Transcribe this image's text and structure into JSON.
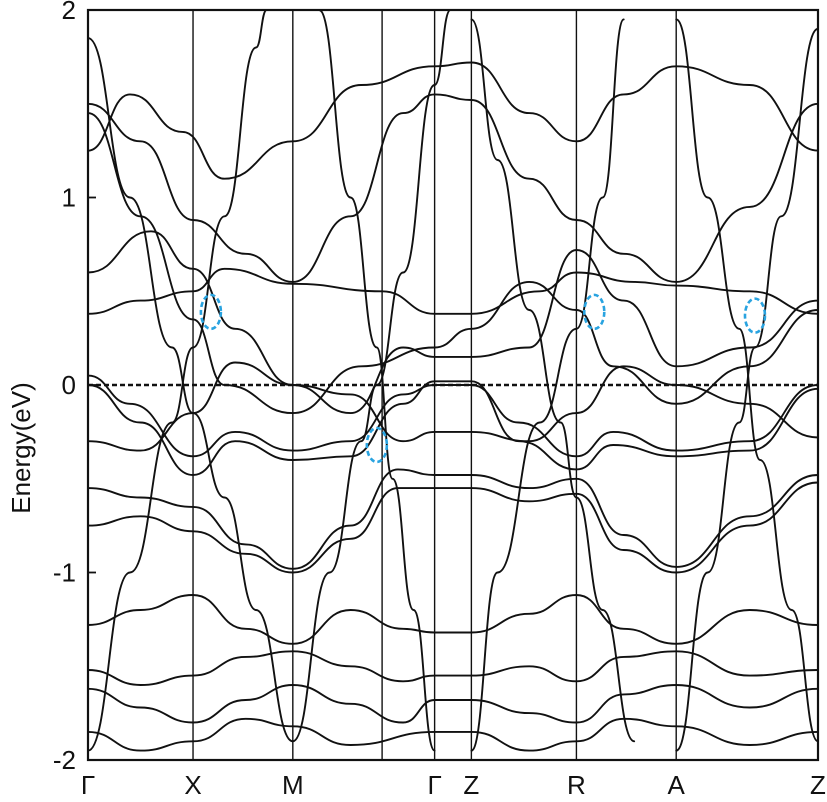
{
  "chart_data": {
    "type": "line",
    "title": "",
    "xlabel": "",
    "ylabel": "Energy(eV)",
    "ylim": [
      -2,
      2
    ],
    "yticks": [
      {
        "value": 2,
        "label": "2"
      },
      {
        "value": 1,
        "label": "1"
      },
      {
        "value": 0,
        "label": "0"
      },
      {
        "value": -1,
        "label": "-1"
      },
      {
        "value": -2,
        "label": "-2"
      }
    ],
    "kpath": [
      {
        "label": "Γ",
        "pos": 0.0
      },
      {
        "label": "X",
        "pos": 1.0
      },
      {
        "label": "M",
        "pos": 1.95
      },
      {
        "label": "",
        "pos": 2.8
      },
      {
        "label": "Γ",
        "pos": 3.3
      },
      {
        "label": "Z",
        "pos": 3.65
      },
      {
        "label": "R",
        "pos": 4.65
      },
      {
        "label": "A",
        "pos": 5.6
      },
      {
        "label": "Z",
        "pos": 6.95
      }
    ],
    "xlim": [
      0,
      6.95
    ],
    "fermi_level": 0,
    "grid": false,
    "line_color": "#111111",
    "highlight_color": "#29a3e0",
    "highlights": [
      {
        "k": 1.17,
        "e": 0.39
      },
      {
        "k": 2.75,
        "e": -0.32
      },
      {
        "k": 4.82,
        "e": 0.39
      },
      {
        "k": 6.35,
        "e": 0.37
      }
    ],
    "series": [
      {
        "points": [
          [
            0,
            0.38
          ],
          [
            0.5,
            0.45
          ],
          [
            1.0,
            0.5
          ],
          [
            1.3,
            0.62
          ],
          [
            1.95,
            0.54
          ],
          [
            2.8,
            0.5
          ],
          [
            3.3,
            0.38
          ],
          [
            3.65,
            0.38
          ],
          [
            4.3,
            0.5
          ],
          [
            4.65,
            0.6
          ],
          [
            5.2,
            0.55
          ],
          [
            5.6,
            0.53
          ],
          [
            6.3,
            0.5
          ],
          [
            6.95,
            0.38
          ]
        ]
      },
      {
        "points": [
          [
            0,
            0.05
          ],
          [
            0.4,
            -0.1
          ],
          [
            1.0,
            -0.38
          ],
          [
            1.4,
            -0.25
          ],
          [
            1.95,
            -0.35
          ],
          [
            2.5,
            -0.3
          ],
          [
            3.0,
            -0.05
          ],
          [
            3.3,
            0.0
          ],
          [
            3.65,
            0.0
          ],
          [
            4.1,
            -0.2
          ],
          [
            4.65,
            -0.38
          ],
          [
            5.0,
            -0.25
          ],
          [
            5.6,
            -0.35
          ],
          [
            6.3,
            -0.3
          ],
          [
            6.95,
            0.0
          ]
        ]
      },
      {
        "points": [
          [
            0,
            0.0
          ],
          [
            0.5,
            -0.2
          ],
          [
            1.0,
            -0.48
          ],
          [
            1.4,
            -0.3
          ],
          [
            1.95,
            -0.4
          ],
          [
            2.5,
            -0.38
          ],
          [
            3.0,
            -0.1
          ],
          [
            3.3,
            0.02
          ],
          [
            3.65,
            0.02
          ],
          [
            4.1,
            -0.3
          ],
          [
            4.65,
            -0.45
          ],
          [
            5.0,
            -0.32
          ],
          [
            5.6,
            -0.38
          ],
          [
            6.3,
            -0.35
          ],
          [
            6.95,
            -0.02
          ]
        ]
      },
      {
        "points": [
          [
            0,
            -0.55
          ],
          [
            0.5,
            -0.6
          ],
          [
            1.0,
            -0.65
          ],
          [
            1.5,
            -0.85
          ],
          [
            1.95,
            -0.98
          ],
          [
            2.5,
            -0.75
          ],
          [
            2.95,
            -0.45
          ],
          [
            3.3,
            -0.48
          ],
          [
            3.65,
            -0.48
          ],
          [
            4.2,
            -0.55
          ],
          [
            4.65,
            -0.5
          ],
          [
            5.1,
            -0.8
          ],
          [
            5.6,
            -0.97
          ],
          [
            6.3,
            -0.7
          ],
          [
            6.95,
            -0.48
          ]
        ]
      },
      {
        "points": [
          [
            0,
            -0.75
          ],
          [
            0.5,
            -0.7
          ],
          [
            1.0,
            -0.78
          ],
          [
            1.5,
            -0.9
          ],
          [
            1.95,
            -1.0
          ],
          [
            2.5,
            -0.82
          ],
          [
            2.95,
            -0.55
          ],
          [
            3.3,
            -0.55
          ],
          [
            3.65,
            -0.55
          ],
          [
            4.2,
            -0.62
          ],
          [
            4.65,
            -0.58
          ],
          [
            5.1,
            -0.88
          ],
          [
            5.6,
            -1.0
          ],
          [
            6.3,
            -0.75
          ],
          [
            6.95,
            -0.52
          ]
        ]
      },
      {
        "points": [
          [
            0,
            -1.52
          ],
          [
            0.5,
            -1.6
          ],
          [
            1.0,
            -1.55
          ],
          [
            1.5,
            -1.45
          ],
          [
            1.95,
            -1.42
          ],
          [
            2.5,
            -1.5
          ],
          [
            3.0,
            -1.58
          ],
          [
            3.3,
            -1.55
          ],
          [
            3.65,
            -1.55
          ],
          [
            4.2,
            -1.5
          ],
          [
            4.65,
            -1.58
          ],
          [
            5.1,
            -1.45
          ],
          [
            5.6,
            -1.42
          ],
          [
            6.3,
            -1.55
          ],
          [
            6.95,
            -1.52
          ]
        ]
      },
      {
        "points": [
          [
            0,
            -1.62
          ],
          [
            0.5,
            -1.72
          ],
          [
            1.0,
            -1.8
          ],
          [
            1.5,
            -1.68
          ],
          [
            1.95,
            -1.6
          ],
          [
            2.5,
            -1.7
          ],
          [
            3.0,
            -1.8
          ],
          [
            3.3,
            -1.68
          ],
          [
            3.65,
            -1.68
          ],
          [
            4.2,
            -1.75
          ],
          [
            4.65,
            -1.8
          ],
          [
            5.1,
            -1.65
          ],
          [
            5.6,
            -1.6
          ],
          [
            6.3,
            -1.72
          ],
          [
            6.95,
            -1.62
          ]
        ]
      },
      {
        "points": [
          [
            0,
            -1.28
          ],
          [
            0.5,
            -1.2
          ],
          [
            1.0,
            -1.12
          ],
          [
            1.5,
            -1.3
          ],
          [
            1.95,
            -1.38
          ],
          [
            2.5,
            -1.2
          ],
          [
            3.0,
            -1.3
          ],
          [
            3.3,
            -1.32
          ],
          [
            3.65,
            -1.32
          ],
          [
            4.2,
            -1.22
          ],
          [
            4.65,
            -1.12
          ],
          [
            5.1,
            -1.3
          ],
          [
            5.6,
            -1.38
          ],
          [
            6.3,
            -1.2
          ],
          [
            6.95,
            -1.28
          ]
        ]
      },
      {
        "points": [
          [
            0,
            1.5
          ],
          [
            0.5,
            1.3
          ],
          [
            1.0,
            0.88
          ],
          [
            1.5,
            0.7
          ],
          [
            1.95,
            0.55
          ],
          [
            2.5,
            0.9
          ],
          [
            3.0,
            1.45
          ],
          [
            3.3,
            1.55
          ],
          [
            3.65,
            1.52
          ],
          [
            4.2,
            1.1
          ],
          [
            4.65,
            0.88
          ],
          [
            5.1,
            0.7
          ],
          [
            5.6,
            0.55
          ],
          [
            6.3,
            0.95
          ],
          [
            6.95,
            1.5
          ]
        ]
      },
      {
        "points": [
          [
            0,
            1.45
          ],
          [
            0.5,
            0.9
          ],
          [
            1.0,
            0.35
          ],
          [
            1.3,
            0.0
          ],
          [
            1.95,
            -0.15
          ],
          [
            2.6,
            0.1
          ],
          [
            3.3,
            0.2
          ],
          [
            3.65,
            0.3
          ],
          [
            4.2,
            0.55
          ],
          [
            4.65,
            0.4
          ],
          [
            5.0,
            0.1
          ],
          [
            5.6,
            -0.1
          ],
          [
            6.3,
            0.1
          ],
          [
            6.95,
            0.4
          ]
        ]
      },
      {
        "points": [
          [
            0,
            0.6
          ],
          [
            0.6,
            0.82
          ],
          [
            1.0,
            0.62
          ],
          [
            1.4,
            0.3
          ],
          [
            1.95,
            0.0
          ],
          [
            2.5,
            -0.15
          ],
          [
            3.0,
            0.2
          ],
          [
            3.3,
            0.15
          ],
          [
            3.65,
            0.15
          ],
          [
            4.2,
            0.2
          ],
          [
            4.65,
            0.72
          ],
          [
            5.1,
            0.45
          ],
          [
            5.6,
            0.1
          ],
          [
            6.3,
            0.2
          ],
          [
            6.95,
            0.45
          ]
        ]
      },
      {
        "points": [
          [
            0,
            -0.3
          ],
          [
            0.5,
            -0.35
          ],
          [
            1.0,
            -0.15
          ],
          [
            1.4,
            0.12
          ],
          [
            1.95,
            0.0
          ],
          [
            2.5,
            -0.05
          ],
          [
            3.0,
            -0.3
          ],
          [
            3.3,
            -0.25
          ],
          [
            3.65,
            -0.25
          ],
          [
            4.2,
            -0.3
          ],
          [
            4.65,
            -0.15
          ],
          [
            5.1,
            0.1
          ],
          [
            5.6,
            0.0
          ],
          [
            6.3,
            -0.1
          ],
          [
            6.95,
            -0.28
          ]
        ]
      },
      {
        "points": [
          [
            0,
            1.85
          ],
          [
            0.4,
            1.0
          ],
          [
            0.8,
            0.2
          ],
          [
            1.0,
            -0.15
          ],
          [
            1.3,
            -0.6
          ],
          [
            1.6,
            -1.2
          ],
          [
            1.95,
            -1.9
          ]
        ]
      },
      {
        "points": [
          [
            1.95,
            -1.9
          ],
          [
            2.3,
            -1.0
          ],
          [
            2.6,
            -0.3
          ],
          [
            2.75,
            0.0
          ],
          [
            3.0,
            0.6
          ],
          [
            3.3,
            1.6
          ],
          [
            3.45,
            2.0
          ]
        ]
      },
      {
        "points": [
          [
            3.65,
            1.95
          ],
          [
            3.9,
            1.2
          ],
          [
            4.2,
            0.4
          ],
          [
            4.5,
            -0.2
          ],
          [
            4.65,
            -0.6
          ],
          [
            4.9,
            -1.2
          ],
          [
            5.2,
            -1.9
          ]
        ]
      },
      {
        "points": [
          [
            5.6,
            -1.95
          ],
          [
            5.9,
            -1.0
          ],
          [
            6.2,
            -0.2
          ],
          [
            6.35,
            0.2
          ],
          [
            6.6,
            0.9
          ],
          [
            6.95,
            1.9
          ]
        ]
      },
      {
        "points": [
          [
            0,
            -1.95
          ],
          [
            0.4,
            -1.0
          ],
          [
            0.8,
            -0.2
          ],
          [
            1.0,
            0.2
          ],
          [
            1.3,
            0.9
          ],
          [
            1.6,
            1.8
          ],
          [
            1.7,
            2.0
          ]
        ]
      },
      {
        "points": [
          [
            2.2,
            2.0
          ],
          [
            2.5,
            1.0
          ],
          [
            2.75,
            0.2
          ],
          [
            2.9,
            -0.5
          ],
          [
            3.1,
            -1.2
          ],
          [
            3.3,
            -1.95
          ]
        ]
      },
      {
        "points": [
          [
            3.65,
            -1.95
          ],
          [
            3.9,
            -1.0
          ],
          [
            4.3,
            -0.2
          ],
          [
            4.65,
            0.3
          ],
          [
            4.9,
            1.0
          ],
          [
            5.1,
            1.95
          ]
        ]
      },
      {
        "points": [
          [
            5.6,
            1.95
          ],
          [
            5.9,
            1.0
          ],
          [
            6.2,
            0.3
          ],
          [
            6.4,
            -0.4
          ],
          [
            6.7,
            -1.2
          ],
          [
            6.95,
            -1.9
          ]
        ]
      },
      {
        "points": [
          [
            0,
            1.25
          ],
          [
            0.4,
            1.55
          ],
          [
            0.9,
            1.35
          ],
          [
            1.3,
            1.1
          ],
          [
            1.95,
            1.3
          ],
          [
            2.6,
            1.6
          ],
          [
            3.3,
            1.7
          ],
          [
            3.65,
            1.72
          ],
          [
            4.2,
            1.45
          ],
          [
            4.65,
            1.3
          ],
          [
            5.1,
            1.55
          ],
          [
            5.6,
            1.7
          ],
          [
            6.3,
            1.6
          ],
          [
            6.95,
            1.25
          ]
        ]
      },
      {
        "points": [
          [
            0,
            -1.85
          ],
          [
            0.5,
            -1.95
          ],
          [
            1.0,
            -1.9
          ],
          [
            1.5,
            -1.78
          ],
          [
            1.95,
            -1.82
          ],
          [
            2.5,
            -1.92
          ],
          [
            3.3,
            -1.85
          ],
          [
            3.65,
            -1.85
          ],
          [
            4.2,
            -1.95
          ],
          [
            4.65,
            -1.9
          ],
          [
            5.1,
            -1.78
          ],
          [
            5.6,
            -1.82
          ],
          [
            6.3,
            -1.92
          ],
          [
            6.95,
            -1.85
          ]
        ]
      }
    ]
  }
}
